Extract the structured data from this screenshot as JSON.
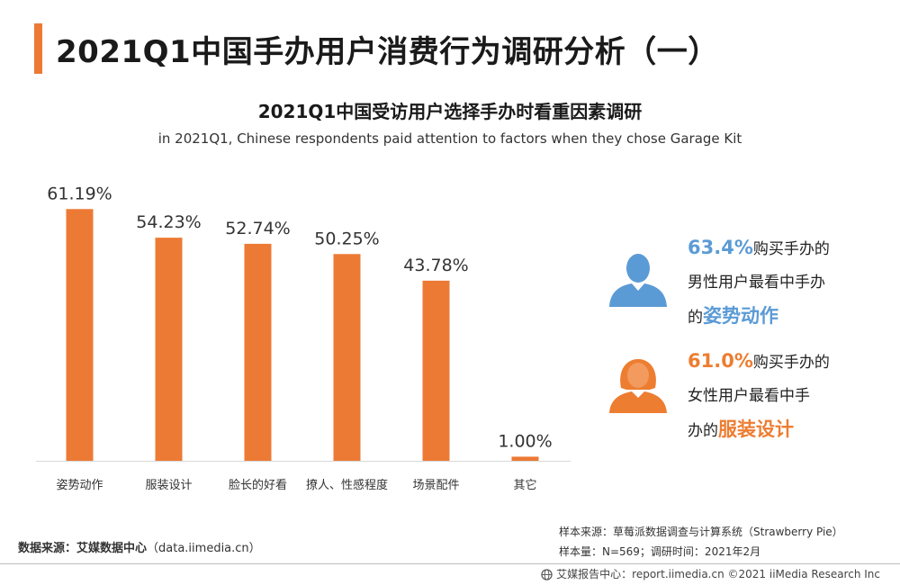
{
  "page_title": "2021Q1中国手办用户消费行为调研分析（一）",
  "colors": {
    "accent": "#ec7a35",
    "male": "#5b9bd5",
    "female": "#ed7d31",
    "baseline": "#d9d9d9"
  },
  "chart_data": {
    "type": "bar",
    "title": "2021Q1中国受访用户选择手办时看重因素调研",
    "subtitle": "in 2021Q1, Chinese respondents paid attention to factors when they chose Garage Kit",
    "xlabel": "",
    "ylabel": "",
    "categories": [
      "姿势动作",
      "服装设计",
      "脸长的好看",
      "撩人、性感程度",
      "场景配件",
      "其它"
    ],
    "values": [
      61.19,
      54.23,
      52.74,
      50.25,
      43.78,
      1.0
    ],
    "value_labels": [
      "61.19%",
      "54.23%",
      "52.74%",
      "50.25%",
      "43.78%",
      "1.00%"
    ],
    "ylim": [
      0,
      70
    ],
    "grid": false,
    "legend": "none"
  },
  "highlights": {
    "male": {
      "icon": "male-user-icon",
      "pct": "63.4%",
      "text1": "购买手办的",
      "text2": "男性用户最看中手办",
      "text3": "的",
      "keyword": "姿势动作"
    },
    "female": {
      "icon": "female-user-icon",
      "pct": "61.0%",
      "text1": "购买手办的",
      "text2": "女性用户最看中手",
      "text3": "办的",
      "keyword": "服装设计"
    }
  },
  "source": {
    "data_source_label": "数据来源：艾媒数据中心",
    "data_source_value": "（data.iimedia.cn）",
    "sample_source": "样本来源：草莓派数据调查与计算系统（Strawberry Pie）",
    "sample_info": "样本量：N=569；调研时间：2021年2月"
  },
  "footer": {
    "icon": "globe-icon",
    "text": "艾媒报告中心：report.iimedia.cn   ©2021  iiMedia Research  Inc"
  }
}
